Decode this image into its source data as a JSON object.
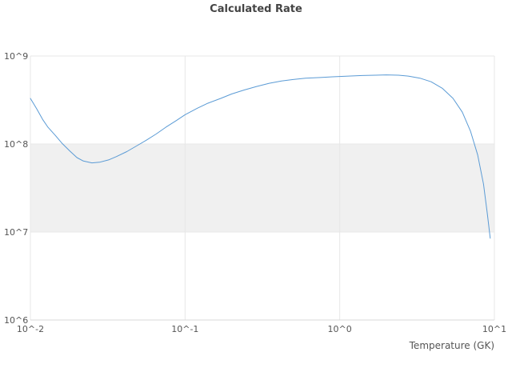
{
  "chart_data": {
    "type": "line",
    "title": "Calculated Rate",
    "xlabel": "Temperature (GK)",
    "ylabel": "",
    "x_scale": "log",
    "y_scale": "log",
    "xlim": [
      0.01,
      10
    ],
    "ylim": [
      1000000.0,
      1000000000.0
    ],
    "x_ticks": [
      {
        "value": 0.01,
        "label": "10^-2"
      },
      {
        "value": 0.1,
        "label": "10^-1"
      },
      {
        "value": 1,
        "label": "10^0"
      },
      {
        "value": 10,
        "label": "10^1"
      }
    ],
    "y_ticks": [
      {
        "value": 1000000.0,
        "label": "10^6"
      },
      {
        "value": 10000000.0,
        "label": "10^7"
      },
      {
        "value": 100000000.0,
        "label": "10^8"
      },
      {
        "value": 1000000000.0,
        "label": "10^9"
      }
    ],
    "highlight_band": {
      "from": 10000000.0,
      "to": 100000000.0,
      "color": "#f0f0f0"
    },
    "grid": true,
    "grid_color": "#e7e7e7",
    "line_color": "#5b9bd5",
    "legend": "none",
    "series": [
      {
        "name": "Calculated Rate",
        "x": [
          0.01,
          0.011,
          0.012,
          0.013,
          0.0145,
          0.016,
          0.018,
          0.02,
          0.022,
          0.025,
          0.028,
          0.032,
          0.036,
          0.042,
          0.048,
          0.056,
          0.065,
          0.075,
          0.088,
          0.1,
          0.12,
          0.14,
          0.17,
          0.2,
          0.24,
          0.29,
          0.35,
          0.42,
          0.5,
          0.6,
          0.75,
          0.9,
          1.1,
          1.4,
          1.7,
          2.0,
          2.4,
          2.8,
          3.3,
          3.9,
          4.6,
          5.4,
          6.2,
          7.0,
          7.8,
          8.5,
          9.0,
          9.4
        ],
        "y": [
          330000000.0,
          250000000.0,
          190000000.0,
          155000000.0,
          125000000.0,
          102000000.0,
          83000000.0,
          70000000.0,
          64000000.0,
          61000000.0,
          62000000.0,
          66000000.0,
          72000000.0,
          82000000.0,
          94000000.0,
          110000000.0,
          130000000.0,
          155000000.0,
          185000000.0,
          215000000.0,
          255000000.0,
          290000000.0,
          330000000.0,
          370000000.0,
          410000000.0,
          450000000.0,
          490000000.0,
          520000000.0,
          540000000.0,
          560000000.0,
          570000000.0,
          580000000.0,
          590000000.0,
          600000000.0,
          605000000.0,
          610000000.0,
          605000000.0,
          590000000.0,
          560000000.0,
          510000000.0,
          430000000.0,
          330000000.0,
          230000000.0,
          140000000.0,
          75000000.0,
          35000000.0,
          16000000.0,
          8500000.0
        ]
      }
    ]
  }
}
